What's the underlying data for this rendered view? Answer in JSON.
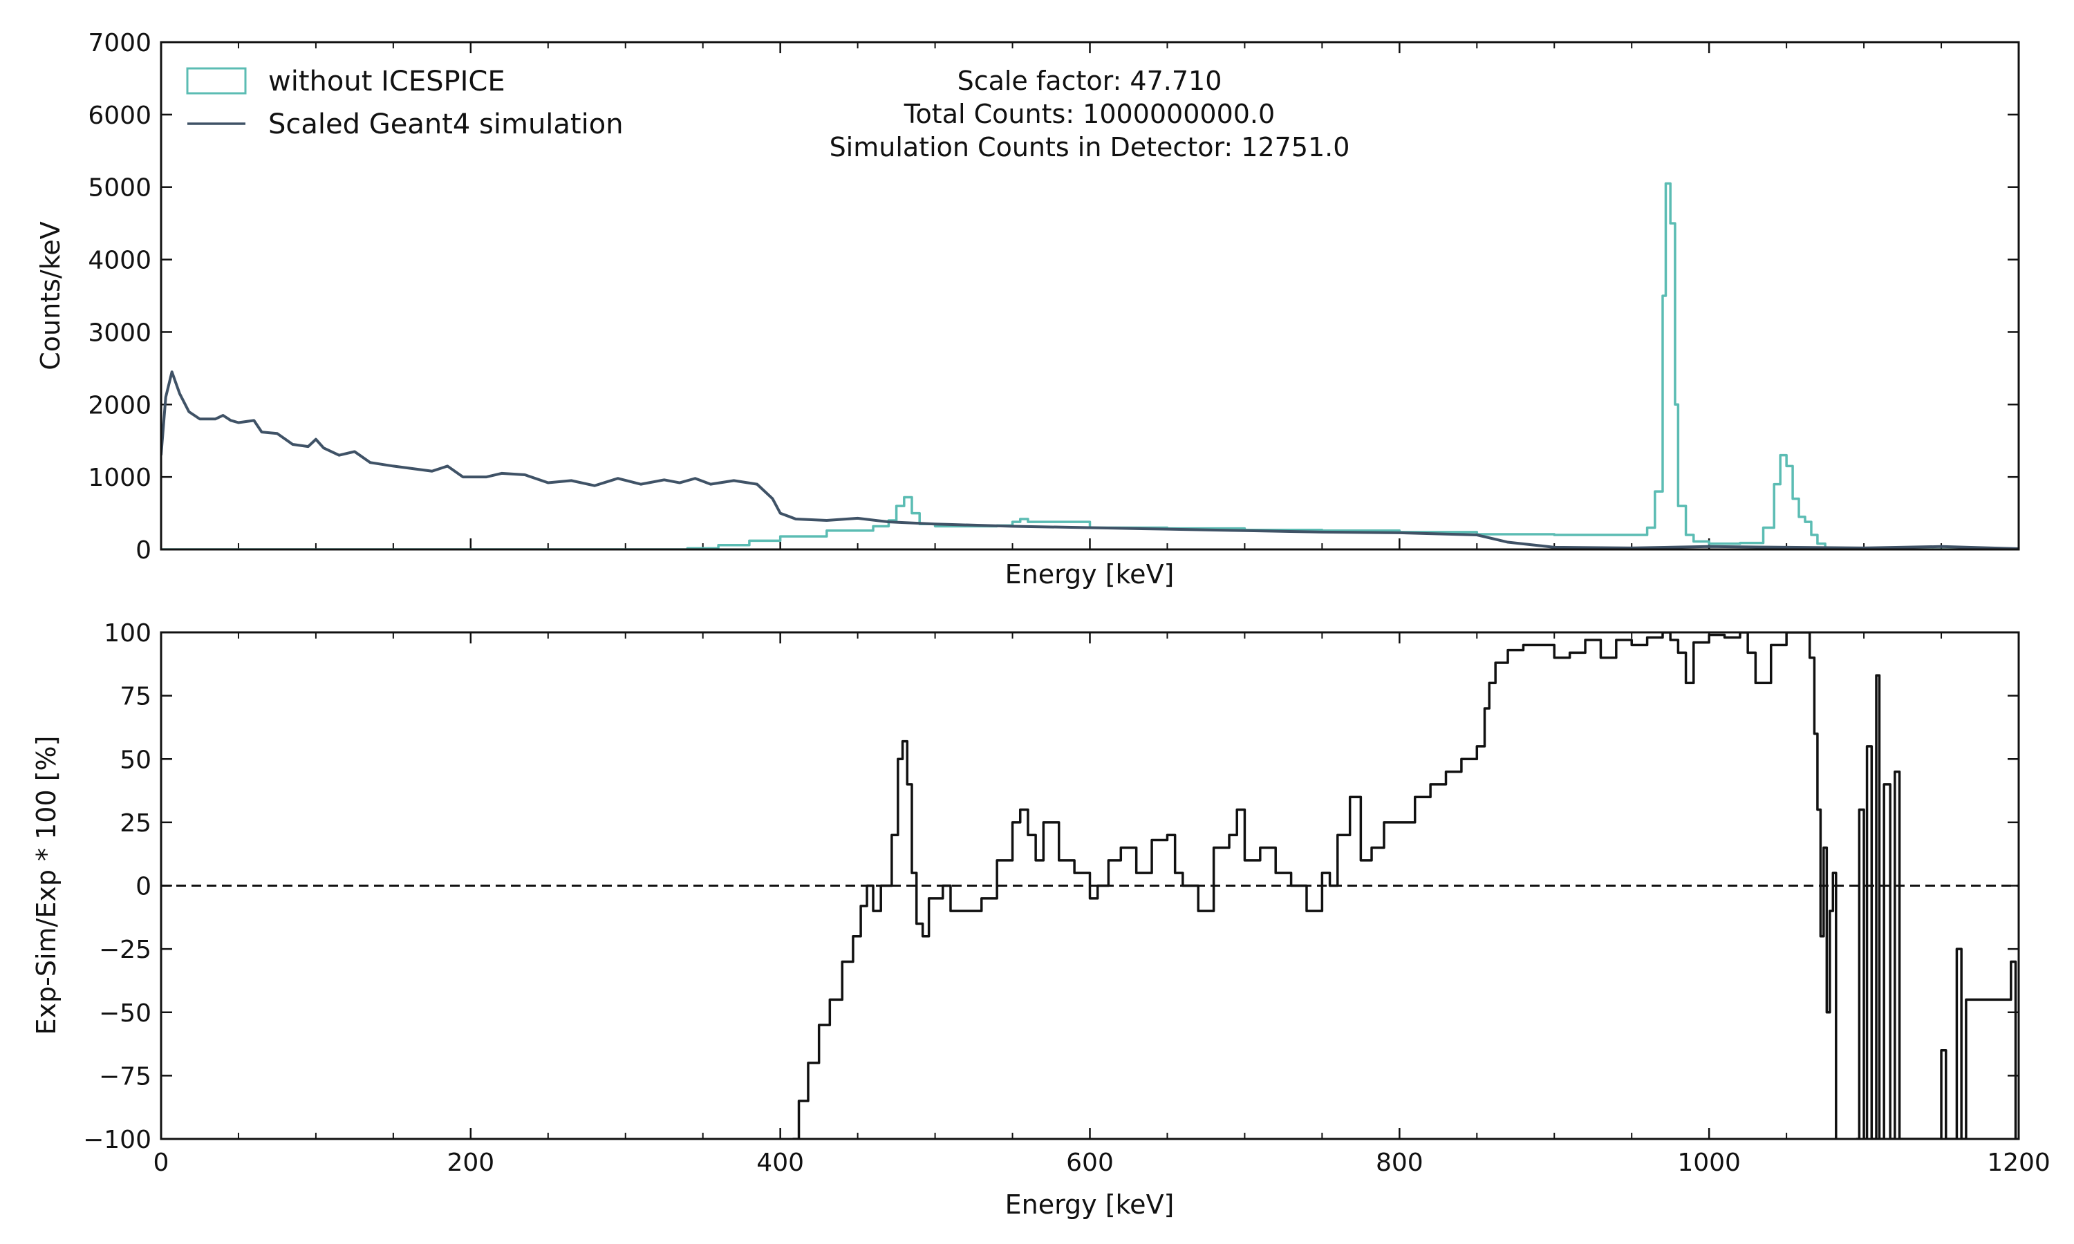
{
  "colors": {
    "experiment": "#5bbcb3",
    "simulation": "#3f5266",
    "residual": "#111111",
    "zero_line": "#111111"
  },
  "chart_data": [
    {
      "type": "line",
      "xlabel": "Energy [keV]",
      "ylabel": "Counts/keV",
      "xlim": [
        0,
        1200
      ],
      "ylim": [
        0,
        7000
      ],
      "xticks": [
        0,
        200,
        400,
        600,
        800,
        1000,
        1200
      ],
      "xtick_labels": [
        "",
        "",
        "",
        "",
        "",
        "",
        ""
      ],
      "yticks": [
        0,
        1000,
        2000,
        3000,
        4000,
        5000,
        6000,
        7000
      ],
      "ytick_labels": [
        "0",
        "1000",
        "2000",
        "3000",
        "4000",
        "5000",
        "6000",
        "7000"
      ],
      "grid": false,
      "legend": {
        "position": "top-left",
        "entries": [
          "without ICESPICE",
          "Scaled Geant4 simulation"
        ]
      },
      "annotations": [
        "Scale factor: 47.710",
        "Total Counts: 1000000000.0",
        "Simulation Counts in Detector: 12751.0"
      ],
      "series": [
        {
          "name": "without ICESPICE",
          "style": "step",
          "x": [
            0,
            300,
            340,
            360,
            380,
            400,
            430,
            460,
            470,
            475,
            480,
            485,
            490,
            500,
            540,
            550,
            555,
            560,
            600,
            650,
            700,
            750,
            800,
            850,
            900,
            950,
            960,
            965,
            970,
            972,
            975,
            978,
            980,
            985,
            990,
            1000,
            1020,
            1035,
            1042,
            1046,
            1050,
            1054,
            1058,
            1062,
            1066,
            1070,
            1075,
            1080,
            1200
          ],
          "y": [
            0,
            0,
            15,
            60,
            120,
            180,
            260,
            320,
            400,
            600,
            720,
            500,
            350,
            320,
            330,
            380,
            420,
            380,
            300,
            290,
            270,
            260,
            240,
            210,
            200,
            200,
            300,
            800,
            3500,
            5050,
            4500,
            2000,
            600,
            200,
            110,
            80,
            90,
            300,
            900,
            1300,
            1150,
            700,
            450,
            380,
            200,
            80,
            20,
            0,
            0
          ]
        },
        {
          "name": "Scaled Geant4 simulation",
          "style": "line",
          "x": [
            0,
            3,
            7,
            12,
            18,
            25,
            35,
            40,
            45,
            50,
            60,
            65,
            75,
            85,
            95,
            100,
            105,
            115,
            125,
            135,
            150,
            175,
            185,
            195,
            210,
            220,
            235,
            250,
            265,
            280,
            295,
            310,
            325,
            335,
            345,
            355,
            370,
            385,
            395,
            400,
            410,
            430,
            450,
            470,
            500,
            550,
            600,
            650,
            700,
            750,
            800,
            850,
            870,
            900,
            950,
            1000,
            1050,
            1100,
            1150,
            1200
          ],
          "y": [
            1300,
            2100,
            2450,
            2150,
            1900,
            1800,
            1800,
            1850,
            1780,
            1750,
            1780,
            1620,
            1600,
            1450,
            1420,
            1520,
            1400,
            1300,
            1350,
            1200,
            1150,
            1080,
            1150,
            1000,
            1000,
            1050,
            1030,
            920,
            950,
            880,
            980,
            900,
            960,
            920,
            980,
            900,
            950,
            900,
            700,
            500,
            420,
            400,
            430,
            380,
            350,
            320,
            300,
            280,
            260,
            240,
            230,
            200,
            100,
            30,
            20,
            40,
            30,
            20,
            40,
            10
          ]
        }
      ]
    },
    {
      "type": "line",
      "xlabel": "Energy [keV]",
      "ylabel": "Exp-Sim/Exp * 100 [%]",
      "xlim": [
        0,
        1200
      ],
      "ylim": [
        -100,
        100
      ],
      "xticks": [
        0,
        200,
        400,
        600,
        800,
        1000,
        1200
      ],
      "xtick_labels": [
        "0",
        "200",
        "400",
        "600",
        "800",
        "1000",
        "1200"
      ],
      "yticks": [
        -100,
        -75,
        -50,
        -25,
        0,
        25,
        50,
        75,
        100
      ],
      "ytick_labels": [
        "−100",
        "−75",
        "−50",
        "−25",
        "0",
        "25",
        "50",
        "75",
        "100"
      ],
      "grid": false,
      "reference_line": {
        "y": 0,
        "style": "dashed"
      },
      "series": [
        {
          "style": "step",
          "x": [
            408,
            412,
            418,
            425,
            432,
            440,
            447,
            452,
            456,
            460,
            465,
            468,
            472,
            476,
            479,
            482,
            485,
            488,
            492,
            496,
            500,
            505,
            510,
            520,
            530,
            540,
            550,
            555,
            560,
            565,
            570,
            580,
            590,
            600,
            605,
            612,
            620,
            630,
            640,
            650,
            655,
            660,
            670,
            680,
            690,
            695,
            700,
            710,
            720,
            730,
            740,
            750,
            755,
            760,
            768,
            775,
            782,
            790,
            800,
            810,
            820,
            830,
            840,
            850,
            855,
            858,
            862,
            870,
            880,
            890,
            900,
            910,
            920,
            930,
            940,
            950,
            960,
            970,
            975,
            980,
            985,
            990,
            1000,
            1010,
            1020,
            1025,
            1030,
            1040,
            1050,
            1060,
            1065,
            1068,
            1070,
            1072,
            1074,
            1076,
            1078,
            1080,
            1082
          ],
          "y": [
            -100,
            -85,
            -70,
            -55,
            -45,
            -30,
            -20,
            -8,
            0,
            -10,
            0,
            0,
            20,
            50,
            57,
            40,
            5,
            -15,
            -20,
            -5,
            -5,
            0,
            -10,
            -10,
            -5,
            10,
            25,
            30,
            20,
            10,
            25,
            10,
            5,
            -5,
            0,
            10,
            15,
            5,
            18,
            20,
            5,
            0,
            -10,
            15,
            20,
            30,
            10,
            15,
            5,
            0,
            -10,
            5,
            0,
            20,
            35,
            10,
            15,
            25,
            25,
            35,
            40,
            45,
            50,
            55,
            70,
            80,
            88,
            93,
            95,
            95,
            90,
            92,
            97,
            90,
            97,
            95,
            98,
            100,
            97,
            92,
            80,
            96,
            99,
            98,
            100,
            92,
            80,
            95,
            100,
            100,
            90,
            60,
            30,
            -20,
            15,
            -50,
            -10,
            5,
            -100
          ]
        },
        {
          "style": "spikes",
          "x": [
            1095,
            1097,
            1100,
            1102,
            1105,
            1108,
            1110,
            1113,
            1117,
            1120,
            1123,
            1150,
            1153,
            1160,
            1163,
            1166,
            1195,
            1198
          ],
          "y": [
            -100,
            30,
            -100,
            55,
            -100,
            83,
            -100,
            40,
            -100,
            45,
            -100,
            -65,
            -100,
            -25,
            -100,
            -45,
            -30,
            -100
          ]
        }
      ]
    }
  ]
}
